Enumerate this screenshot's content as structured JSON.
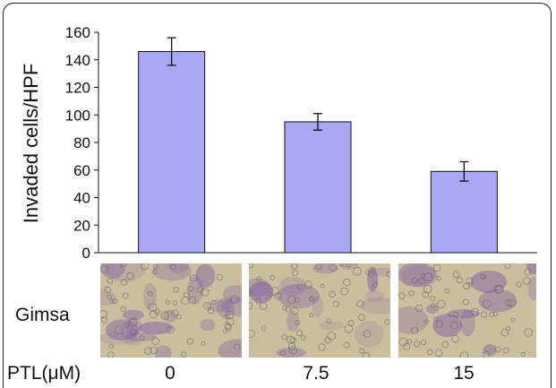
{
  "chart_data": {
    "type": "bar",
    "categories": [
      "0",
      "7.5",
      "15"
    ],
    "values": [
      146,
      95,
      59
    ],
    "errors": [
      10,
      6,
      7
    ],
    "ylabel": "Invaded cells/HPF",
    "xlabel": "PTL(μM)",
    "ylim": [
      0,
      160
    ],
    "yticks": [
      0,
      20,
      40,
      60,
      80,
      100,
      120,
      140,
      160
    ],
    "bar_color": "#a8a8f4",
    "grid": false
  },
  "panel": {
    "stain_label": "Gimsa",
    "treatment_label": "PTL(μM)",
    "conditions": [
      "0",
      "7.5",
      "15"
    ]
  },
  "colors": {
    "micrograph_bg": "#c9bf9c",
    "cell_stain": "#7e5aa6"
  }
}
